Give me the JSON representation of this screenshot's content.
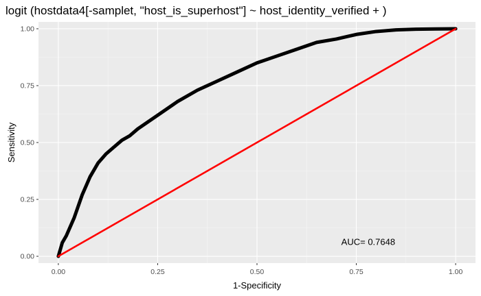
{
  "chart_data": {
    "type": "line",
    "title": "logit (hostdata4[-samplet, \"host_is_superhost\"] ~ host_identity_verified + )",
    "xlabel": "1-Specificity",
    "ylabel": "Sensitivity",
    "xlim": [
      -0.05,
      1.05
    ],
    "ylim": [
      -0.03,
      1.03
    ],
    "x_ticks": [
      0.0,
      0.25,
      0.5,
      0.75,
      1.0
    ],
    "x_tick_labels": [
      "0.00",
      "0.25",
      "0.50",
      "0.75",
      "1.00"
    ],
    "y_ticks": [
      0.0,
      0.25,
      0.5,
      0.75,
      1.0
    ],
    "y_tick_labels": [
      "0.00",
      "0.25",
      "0.50",
      "0.75",
      "1.00"
    ],
    "grid": true,
    "background": "#ebebeb",
    "annotation": {
      "text": "AUC= 0.7648",
      "x": 0.78,
      "y": 0.05
    },
    "series": [
      {
        "color": "#000000",
        "x": [
          0.0,
          0.01,
          0.02,
          0.03,
          0.04,
          0.05,
          0.06,
          0.07,
          0.08,
          0.09,
          0.1,
          0.12,
          0.14,
          0.16,
          0.18,
          0.2,
          0.25,
          0.3,
          0.35,
          0.4,
          0.45,
          0.5,
          0.55,
          0.6,
          0.65,
          0.7,
          0.75,
          0.8,
          0.85,
          0.9,
          0.95,
          1.0
        ],
        "y": [
          0.0,
          0.06,
          0.09,
          0.13,
          0.17,
          0.22,
          0.27,
          0.31,
          0.35,
          0.38,
          0.41,
          0.45,
          0.48,
          0.51,
          0.53,
          0.56,
          0.62,
          0.68,
          0.73,
          0.77,
          0.81,
          0.85,
          0.88,
          0.91,
          0.94,
          0.955,
          0.975,
          0.988,
          0.995,
          0.998,
          0.999,
          1.0
        ]
      },
      {
        "color": "#ff0000",
        "x": [
          0.0,
          1.0
        ],
        "y": [
          0.0,
          1.0
        ]
      }
    ]
  }
}
